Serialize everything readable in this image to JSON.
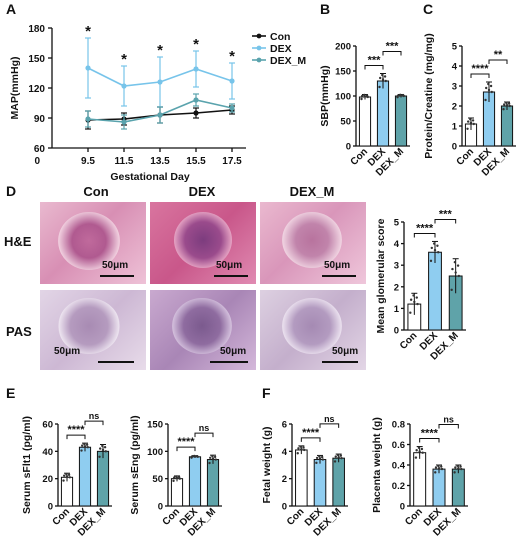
{
  "panel_letters": {
    "a": "A",
    "b": "B",
    "c": "C",
    "d": "D",
    "e": "E",
    "f": "F"
  },
  "colors": {
    "con": "#ffffff",
    "dex": "#8fcdf0",
    "dex_m": "#5fa3a9",
    "line_con": "#111111",
    "line_dex": "#77c4ea",
    "line_dexm": "#5aa3ad"
  },
  "chart_data": [
    {
      "id": "A",
      "type": "line",
      "xlabel": "Gestational Day",
      "ylabel": "MAP(mmHg)",
      "x": [
        "9.5",
        "11.5",
        "13.5",
        "15.5",
        "17.5"
      ],
      "ylim": [
        60,
        180
      ],
      "yticks": [
        60,
        90,
        120,
        150,
        180
      ],
      "series": [
        {
          "name": "Con",
          "values": [
            88,
            89,
            93,
            95,
            98
          ],
          "err": [
            9,
            6,
            8,
            5,
            4
          ]
        },
        {
          "name": "DEX",
          "values": [
            140,
            122,
            126,
            139,
            127
          ],
          "err": [
            30,
            20,
            25,
            18,
            18
          ]
        },
        {
          "name": "DEX_M",
          "values": [
            89,
            86,
            93,
            108,
            100
          ],
          "err": [
            8,
            7,
            8,
            6,
            4
          ]
        }
      ],
      "annotations": [
        "*",
        "*",
        "*",
        "*",
        "*"
      ]
    },
    {
      "id": "B",
      "type": "bar",
      "ylabel": "SBP(mmHg)",
      "categories": [
        "Con",
        "DEX",
        "DEX_M"
      ],
      "values": [
        98,
        130,
        100
      ],
      "err": [
        5,
        15,
        3
      ],
      "ylim": [
        0,
        200
      ],
      "yticks": [
        0,
        50,
        100,
        150,
        200
      ],
      "comparisons": [
        {
          "from": 0,
          "to": 1,
          "label": "***"
        },
        {
          "from": 1,
          "to": 2,
          "label": "***"
        }
      ]
    },
    {
      "id": "C",
      "type": "bar",
      "ylabel": "Protein/Creatine (mg/mg)",
      "categories": [
        "Con",
        "DEX",
        "DEX_M"
      ],
      "values": [
        1.1,
        2.7,
        2.0
      ],
      "err": [
        0.3,
        0.5,
        0.2
      ],
      "ylim": [
        0,
        5
      ],
      "yticks": [
        0,
        1,
        2,
        3,
        4,
        5
      ],
      "comparisons": [
        {
          "from": 0,
          "to": 1,
          "label": "****"
        },
        {
          "from": 1,
          "to": 2,
          "label": "**"
        }
      ]
    },
    {
      "id": "D",
      "type": "bar",
      "ylabel": "Mean glomerular score",
      "categories": [
        "Con",
        "DEX",
        "DEX_M"
      ],
      "values": [
        1.2,
        3.6,
        2.5
      ],
      "err": [
        0.5,
        0.5,
        0.8
      ],
      "ylim": [
        0,
        5
      ],
      "yticks": [
        0,
        1,
        2,
        3,
        4,
        5
      ],
      "comparisons": [
        {
          "from": 0,
          "to": 1,
          "label": "****"
        },
        {
          "from": 1,
          "to": 2,
          "label": "***"
        }
      ]
    },
    {
      "id": "E1",
      "type": "bar",
      "ylabel": "Serum sFlt1 (pg/ml)",
      "categories": [
        "Con",
        "DEX",
        "DEX_M"
      ],
      "values": [
        21,
        43,
        40
      ],
      "err": [
        3,
        3,
        5
      ],
      "ylim": [
        0,
        60
      ],
      "yticks": [
        0,
        20,
        40,
        60
      ],
      "comparisons": [
        {
          "from": 0,
          "to": 1,
          "label": "****"
        },
        {
          "from": 1,
          "to": 2,
          "label": "ns"
        }
      ]
    },
    {
      "id": "E2",
      "type": "bar",
      "ylabel": "Serum sEng (pg/ml)",
      "categories": [
        "Con",
        "DEX",
        "DEX_M"
      ],
      "values": [
        50,
        90,
        85
      ],
      "err": [
        5,
        2,
        8
      ],
      "ylim": [
        0,
        150
      ],
      "yticks": [
        0,
        50,
        100,
        150
      ],
      "comparisons": [
        {
          "from": 0,
          "to": 1,
          "label": "****"
        },
        {
          "from": 1,
          "to": 2,
          "label": "ns"
        }
      ]
    },
    {
      "id": "F1",
      "type": "bar",
      "ylabel": "Fetal weight (g)",
      "categories": [
        "Con",
        "DEX",
        "DEX_M"
      ],
      "values": [
        4.1,
        3.4,
        3.5
      ],
      "err": [
        0.3,
        0.3,
        0.3
      ],
      "ylim": [
        0,
        6
      ],
      "yticks": [
        0,
        2,
        4,
        6
      ],
      "comparisons": [
        {
          "from": 0,
          "to": 1,
          "label": "****"
        },
        {
          "from": 1,
          "to": 2,
          "label": "ns"
        }
      ]
    },
    {
      "id": "F2",
      "type": "bar",
      "ylabel": "Placenta weight (g)",
      "categories": [
        "Con",
        "DEX",
        "DEX_M"
      ],
      "values": [
        0.52,
        0.36,
        0.36
      ],
      "err": [
        0.06,
        0.04,
        0.04
      ],
      "ylim": [
        0,
        0.8
      ],
      "yticks": [
        0.0,
        0.2,
        0.4,
        0.6,
        0.8
      ],
      "comparisons": [
        {
          "from": 0,
          "to": 1,
          "label": "****"
        },
        {
          "from": 1,
          "to": 2,
          "label": "ns"
        }
      ]
    }
  ],
  "histology": {
    "columns": [
      "Con",
      "DEX",
      "DEX_M"
    ],
    "rows": [
      "H&E",
      "PAS"
    ],
    "scale_bar": "50μm"
  }
}
